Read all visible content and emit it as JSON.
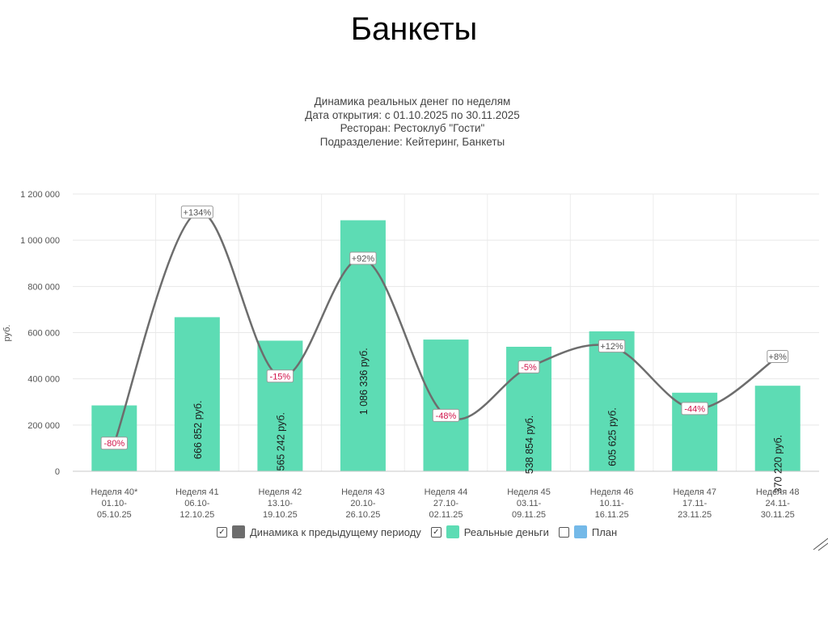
{
  "slide": {
    "title": "Банкеты"
  },
  "chart_header": {
    "line1": "Динамика реальных денег по неделям",
    "line2": "Дата открытия: с 01.10.2025 по 30.11.2025",
    "line3": "Ресторан: Рестоклуб \"Гости\"",
    "line4": "Подразделение: Кейтеринг, Банкеты"
  },
  "legend": {
    "items": [
      {
        "label": "Динамика к предыдущему периоду",
        "checked": true,
        "color": "#6d6d6d"
      },
      {
        "label": "Реальные деньги",
        "checked": true,
        "color": "#5ddcb4"
      },
      {
        "label": "План",
        "checked": false,
        "color": "#74b9e8"
      }
    ]
  },
  "chart_data": {
    "type": "bar",
    "title": "Динамика реальных денег по неделям",
    "ylabel": "руб.",
    "ylim": [
      0,
      1200000
    ],
    "yticks": [
      0,
      200000,
      400000,
      600000,
      800000,
      1000000,
      1200000
    ],
    "ytick_labels": [
      "0",
      "200 000",
      "400 000",
      "600 000",
      "800 000",
      "1 000 000",
      "1 200 000"
    ],
    "grid": true,
    "legend_position": "bottom",
    "categories": [
      [
        "Неделя 40*",
        "01.10-",
        "05.10.25"
      ],
      [
        "Неделя 41",
        "06.10-",
        "12.10.25"
      ],
      [
        "Неделя 42",
        "13.10-",
        "19.10.25"
      ],
      [
        "Неделя 43",
        "20.10-",
        "26.10.25"
      ],
      [
        "Неделя 44",
        "27.10-",
        "02.11.25"
      ],
      [
        "Неделя 45",
        "03.11-",
        "09.11.25"
      ],
      [
        "Неделя 46",
        "10.11-",
        "16.11.25"
      ],
      [
        "Неделя 47",
        "17.11-",
        "23.11.25"
      ],
      [
        "Неделя 48",
        "24.11-",
        "30.11.25"
      ]
    ],
    "series": [
      {
        "name": "Реальные деньги",
        "type": "bar",
        "color": "#5ddcb4",
        "values": [
          285000,
          666852,
          565242,
          1086336,
          570000,
          538854,
          605625,
          340000,
          370220
        ],
        "data_labels": [
          "",
          "666 852 руб.",
          "565 242 руб.",
          "1 086 336 руб.",
          "",
          "538 854 руб.",
          "605 625 руб.",
          "",
          "370 220 руб."
        ]
      },
      {
        "name": "Динамика к предыдущему периоду",
        "type": "line",
        "color": "#6d6d6d",
        "labels": [
          "-80%",
          "+134%",
          "-15%",
          "+92%",
          "-48%",
          "-5%",
          "+12%",
          "-44%",
          "+8%"
        ],
        "plot_values": [
          120000,
          1120000,
          410000,
          920000,
          240000,
          450000,
          540000,
          270000,
          495000
        ]
      }
    ]
  }
}
